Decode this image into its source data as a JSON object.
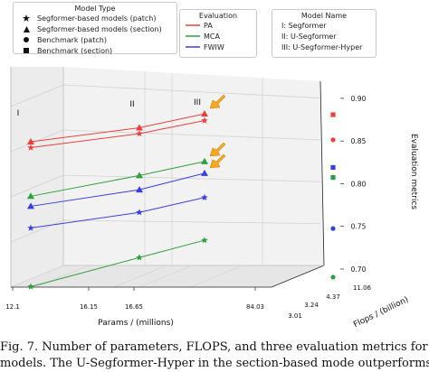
{
  "legends": {
    "model_type": {
      "title": "Model Type",
      "items": [
        {
          "label": "Segformer-based models (patch)",
          "marker": "star"
        },
        {
          "label": "Segformer-based models (section)",
          "marker": "triangle"
        },
        {
          "label": "Benchmark (patch)",
          "marker": "circle"
        },
        {
          "label": "Benchmark (section)",
          "marker": "square"
        }
      ]
    },
    "evaluation": {
      "title": "Evaluation",
      "items": [
        {
          "label": "PA",
          "color": "#e8413c"
        },
        {
          "label": "MCA",
          "color": "#2f9e3c"
        },
        {
          "label": "FWIW",
          "color": "#3a3ee0"
        }
      ]
    },
    "model_name": {
      "title": "Model Name",
      "items": [
        "I:   Segformer",
        "II:  U-Segformer",
        "III:  U-Segformer-Hyper"
      ]
    }
  },
  "chart_data": {
    "type": "scatter",
    "title": "",
    "xlabel": "Params / (millions)",
    "ylabel": "Flops / (billion)",
    "zlabel": "Evaluation metrics",
    "x_ticks": [
      "12.1",
      "16.15",
      "16.65",
      "84.03"
    ],
    "y_ticks": [
      "3.01",
      "3.24",
      "4.37",
      "11.06"
    ],
    "z_ticks": [
      "0.70",
      "0.75",
      "0.80",
      "0.85",
      "0.90"
    ],
    "zlim": [
      0.7,
      0.92
    ],
    "model_labels": [
      "I",
      "II",
      "III"
    ],
    "colors": {
      "PA": "#e8413c",
      "MCA": "#2f9e3c",
      "FWIW": "#3a3ee0",
      "highlight": "#f5a623"
    },
    "series": [
      {
        "name": "PA",
        "marker": "triangle",
        "values": [
          0.893,
          0.9,
          0.907
        ]
      },
      {
        "name": "PA",
        "marker": "star",
        "values": [
          0.886,
          0.893,
          0.899
        ]
      },
      {
        "name": "MCA",
        "marker": "triangle",
        "values": [
          0.828,
          0.843,
          0.85
        ]
      },
      {
        "name": "FWIW",
        "marker": "triangle",
        "values": [
          0.816,
          0.826,
          0.836
        ]
      },
      {
        "name": "FWIW",
        "marker": "star",
        "values": [
          0.79,
          0.799,
          0.807
        ]
      },
      {
        "name": "MCA",
        "marker": "star",
        "values": [
          0.72,
          0.745,
          0.756
        ]
      }
    ],
    "benchmarks": [
      {
        "name": "PA",
        "marker": "square",
        "value": 0.893
      },
      {
        "name": "PA",
        "marker": "circle",
        "value": 0.863
      },
      {
        "name": "FWIW",
        "marker": "square",
        "value": 0.83
      },
      {
        "name": "MCA",
        "marker": "square",
        "value": 0.818
      },
      {
        "name": "FWIW",
        "marker": "circle",
        "value": 0.757
      },
      {
        "name": "MCA",
        "marker": "circle",
        "value": 0.699
      }
    ]
  },
  "caption": {
    "line1": "Fig. 7.   Number of parameters, FLOPS, and three evaluation metrics for four",
    "line2": "models. The U-Segformer-Hyper in the section-based mode outperforms the"
  }
}
